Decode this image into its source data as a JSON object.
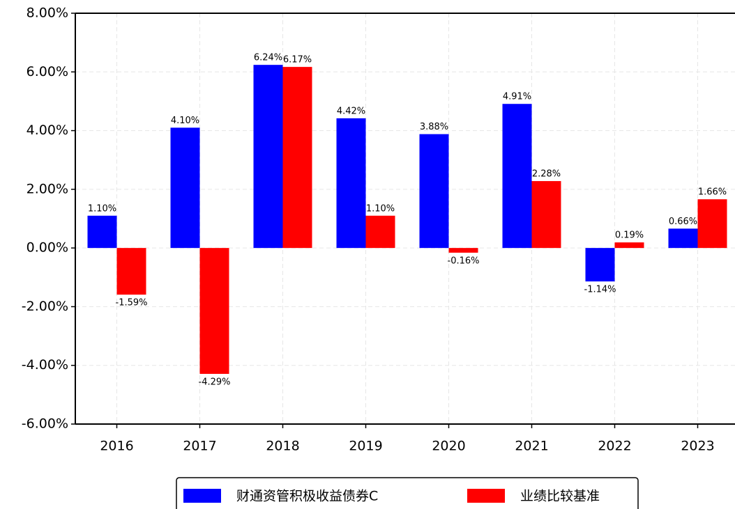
{
  "chart_data": {
    "type": "bar",
    "categories": [
      "2016",
      "2017",
      "2018",
      "2019",
      "2020",
      "2021",
      "2022",
      "2023"
    ],
    "series": [
      {
        "name": "财通资管积极收益债券C",
        "color": "#0000ff",
        "values": [
          1.1,
          4.1,
          6.24,
          4.42,
          3.88,
          4.91,
          -1.14,
          0.66
        ],
        "value_labels": [
          "1.10%",
          "4.10%",
          "6.24%",
          "4.42%",
          "3.88%",
          "4.91%",
          "-1.14%",
          "0.66%"
        ]
      },
      {
        "name": "业绩比较基准",
        "color": "#ff0000",
        "values": [
          -1.59,
          -4.29,
          6.17,
          1.1,
          -0.16,
          2.28,
          0.19,
          1.66
        ],
        "value_labels": [
          "-1.59%",
          "-4.29%",
          "6.17%",
          "1.10%",
          "-0.16%",
          "2.28%",
          "0.19%",
          "1.66%"
        ]
      }
    ],
    "ylim": [
      -6,
      8
    ],
    "yticks": [
      {
        "value": -6,
        "label": "-6.00%"
      },
      {
        "value": -4,
        "label": "-4.00%"
      },
      {
        "value": -2,
        "label": "-2.00%"
      },
      {
        "value": 0,
        "label": "0.00%"
      },
      {
        "value": 2,
        "label": "2.00%"
      },
      {
        "value": 4,
        "label": "4.00%"
      },
      {
        "value": 6,
        "label": "6.00%"
      },
      {
        "value": 8,
        "label": "8.00%"
      }
    ],
    "grid": true,
    "legend": "bottom"
  }
}
